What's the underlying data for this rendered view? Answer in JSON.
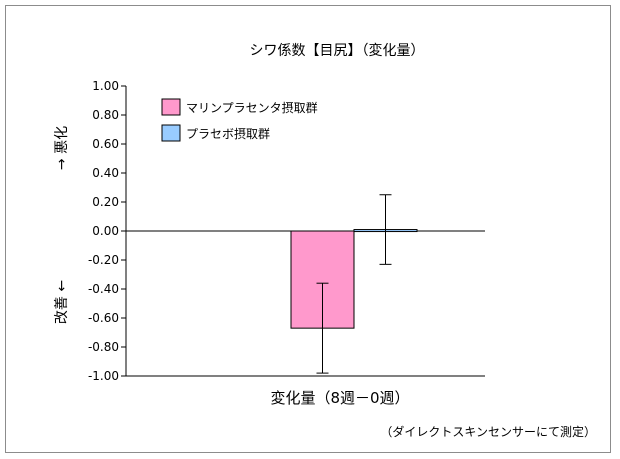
{
  "chart_data": {
    "type": "bar",
    "title": "シワ係数【目尻】（変化量）",
    "xlabel": "変化量（8週－0週）",
    "ylabel_top": "→ 悪化",
    "ylabel_bottom": "改善 ←",
    "note": "（ダイレクトスキンセンサーにて測定）",
    "ylim": [
      -1.0,
      1.0
    ],
    "ytick_step": 0.2,
    "yticks": [
      "1.00",
      "0.80",
      "0.60",
      "0.40",
      "0.20",
      "0.00",
      "-0.20",
      "-0.40",
      "-0.60",
      "-0.80",
      "-1.00"
    ],
    "grid": false,
    "legend_position": "top-left",
    "series": [
      {
        "name": "マリンプラセンタ摂取群",
        "value": -0.67,
        "error": 0.31,
        "color": "#ff99cc"
      },
      {
        "name": "プラセボ摂取群",
        "value": 0.01,
        "error": 0.24,
        "color": "#99ccff"
      }
    ]
  }
}
